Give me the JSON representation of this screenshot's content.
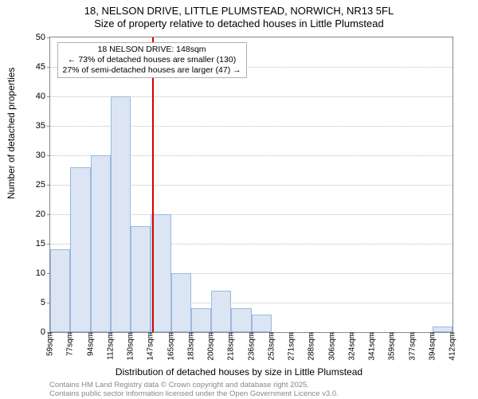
{
  "title": {
    "line1": "18, NELSON DRIVE, LITTLE PLUMSTEAD, NORWICH, NR13 5FL",
    "line2": "Size of property relative to detached houses in Little Plumstead"
  },
  "chart": {
    "type": "histogram",
    "background_color": "#ffffff",
    "grid_color": "#bbbbbb",
    "axis_color": "#888888",
    "bar_fill": "#dbe5f3",
    "bar_stroke": "#9bb8e0",
    "ref_line_color": "#d40000",
    "ylabel": "Number of detached properties",
    "xlabel": "Distribution of detached houses by size in Little Plumstead",
    "ylim": [
      0,
      50
    ],
    "ytick_step": 5,
    "xticks": [
      "59sqm",
      "77sqm",
      "94sqm",
      "112sqm",
      "130sqm",
      "147sqm",
      "165sqm",
      "183sqm",
      "200sqm",
      "218sqm",
      "236sqm",
      "253sqm",
      "271sqm",
      "288sqm",
      "306sqm",
      "324sqm",
      "341sqm",
      "359sqm",
      "377sqm",
      "394sqm",
      "412sqm"
    ],
    "bars": [
      14,
      28,
      30,
      40,
      18,
      20,
      10,
      4,
      7,
      4,
      3,
      0,
      0,
      0,
      0,
      0,
      0,
      0,
      0,
      1
    ],
    "ref_line_index": 5.05,
    "annotation": {
      "line1": "18 NELSON DRIVE: 148sqm",
      "line2": "← 73% of detached houses are smaller (130)",
      "line3": "27% of semi-detached houses are larger (47) →"
    },
    "label_fontsize": 12,
    "tick_fontsize": 11
  },
  "footer": {
    "line1": "Contains HM Land Registry data © Crown copyright and database right 2025.",
    "line2": "Contains public sector information licensed under the Open Government Licence v3.0."
  }
}
